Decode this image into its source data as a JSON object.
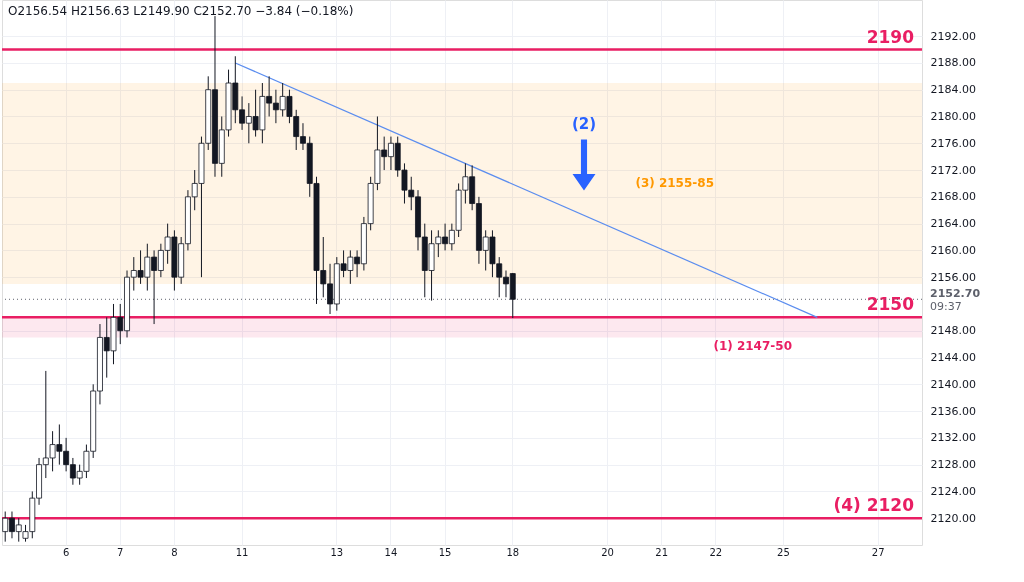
{
  "chart_data": {
    "type": "candlestick",
    "categories": [
      null,
      null,
      null,
      null,
      null,
      null,
      null,
      null,
      null,
      "6",
      null,
      null,
      null,
      null,
      null,
      null,
      null,
      "7",
      null,
      null,
      null,
      null,
      null,
      null,
      null,
      "8",
      null,
      null,
      null,
      null,
      null,
      null,
      null,
      null,
      null,
      "11",
      null,
      null,
      null,
      null,
      null,
      null,
      null,
      null,
      null,
      null,
      null,
      null,
      null,
      "13",
      null,
      null,
      null,
      null,
      null,
      null,
      null,
      "14",
      null,
      null,
      null,
      null,
      null,
      null,
      null,
      "15",
      null,
      null,
      null,
      null,
      null,
      null,
      null,
      null,
      null,
      "18",
      null,
      null,
      null,
      null,
      null,
      null,
      null,
      null,
      null,
      null,
      null,
      null,
      null,
      "20",
      null,
      null,
      null,
      null,
      null,
      null,
      null,
      "21",
      null,
      null,
      null,
      null,
      null,
      null,
      null,
      "22",
      null,
      null,
      null,
      null,
      null,
      null,
      null,
      null,
      null,
      "25",
      null,
      null,
      null,
      null,
      null,
      null,
      null,
      null,
      null,
      null,
      null,
      null,
      null,
      "27",
      null,
      null,
      null,
      null,
      null,
      null
    ],
    "series": [
      {
        "color": "#131722",
        "ohlc": [
          [
            2118,
            2121,
            2116.5,
            2120
          ],
          [
            2120,
            2121,
            2117,
            2118
          ],
          [
            2118,
            2120,
            2116.5,
            2119
          ],
          [
            2117,
            2119,
            2116.5,
            2118
          ],
          [
            2118,
            2124,
            2117,
            2123
          ],
          [
            2123,
            2129,
            2122,
            2128
          ],
          [
            2128,
            2142,
            2126,
            2129
          ],
          [
            2129,
            2133,
            2127,
            2131
          ],
          [
            2131,
            2134,
            2128,
            2130
          ],
          [
            2130,
            2132,
            2127,
            2128
          ],
          [
            2128,
            2129,
            2125,
            2126
          ],
          [
            2126,
            2128,
            2125,
            2127
          ],
          [
            2127,
            2131,
            2126,
            2130
          ],
          [
            2130,
            2140,
            2129,
            2139
          ],
          [
            2139,
            2149,
            2137,
            2147
          ],
          [
            2147,
            2150,
            2141,
            2145
          ],
          [
            2145,
            2152,
            2143,
            2150
          ],
          [
            2150,
            2152,
            2146,
            2148
          ],
          [
            2148,
            2157,
            2147,
            2156
          ],
          [
            2156,
            2159,
            2154,
            2157
          ],
          [
            2157,
            2160,
            2155,
            2156
          ],
          [
            2156,
            2161,
            2154,
            2159
          ],
          [
            2159,
            2160,
            2149,
            2157
          ],
          [
            2157,
            2161,
            2156,
            2160
          ],
          [
            2160,
            2164,
            2158,
            2162
          ],
          [
            2162,
            2163,
            2154,
            2156
          ],
          [
            2156,
            2162,
            2155,
            2161
          ],
          [
            2161,
            2169,
            2160,
            2168
          ],
          [
            2168,
            2172,
            2166,
            2170
          ],
          [
            2170,
            2177,
            2156,
            2176
          ],
          [
            2176,
            2186,
            2175,
            2184
          ],
          [
            2184,
            2195,
            2171,
            2173
          ],
          [
            2173,
            2180,
            2171,
            2178
          ],
          [
            2178,
            2187,
            2177,
            2185
          ],
          [
            2185,
            2189,
            2179,
            2181
          ],
          [
            2181,
            2183,
            2178,
            2179
          ],
          [
            2179,
            2182,
            2176,
            2180
          ],
          [
            2180,
            2184,
            2177,
            2178
          ],
          [
            2178,
            2185,
            2176,
            2183
          ],
          [
            2183,
            2186,
            2180,
            2182
          ],
          [
            2182,
            2184,
            2179,
            2181
          ],
          [
            2181,
            2185,
            2180,
            2183
          ],
          [
            2183,
            2184,
            2179,
            2180
          ],
          [
            2180,
            2181,
            2175,
            2177
          ],
          [
            2177,
            2179,
            2175,
            2176
          ],
          [
            2176,
            2177,
            2168,
            2170
          ],
          [
            2170,
            2171,
            2152,
            2157
          ],
          [
            2157,
            2162,
            2153,
            2155
          ],
          [
            2155,
            2158,
            2150.5,
            2152
          ],
          [
            2152,
            2159,
            2151,
            2158
          ],
          [
            2158,
            2160,
            2156,
            2157
          ],
          [
            2157,
            2160,
            2155,
            2159
          ],
          [
            2159,
            2160,
            2156,
            2158
          ],
          [
            2158,
            2165,
            2157,
            2164
          ],
          [
            2164,
            2171,
            2163,
            2170
          ],
          [
            2170,
            2180,
            2169,
            2175
          ],
          [
            2175,
            2177,
            2172,
            2174
          ],
          [
            2174,
            2177,
            2172,
            2176
          ],
          [
            2176,
            2177,
            2171,
            2172
          ],
          [
            2172,
            2173,
            2167,
            2169
          ],
          [
            2169,
            2171,
            2166,
            2168
          ],
          [
            2168,
            2169,
            2160,
            2162
          ],
          [
            2162,
            2164,
            2153,
            2157
          ],
          [
            2157,
            2163,
            2152.5,
            2161
          ],
          [
            2161,
            2163,
            2159,
            2162
          ],
          [
            2162,
            2164,
            2160,
            2161
          ],
          [
            2161,
            2164,
            2160,
            2163
          ],
          [
            2163,
            2170,
            2162,
            2169
          ],
          [
            2169,
            2173,
            2167,
            2171
          ],
          [
            2171,
            2172.7,
            2166,
            2167
          ],
          [
            2167,
            2168,
            2158,
            2160
          ],
          [
            2160,
            2163,
            2157,
            2162
          ],
          [
            2162,
            2163,
            2156,
            2158
          ],
          [
            2158,
            2159,
            2153,
            2156
          ],
          [
            2156,
            2157,
            2153,
            2155
          ],
          [
            2156.54,
            2156.63,
            2149.9,
            2152.7
          ],
          null,
          null,
          null,
          null,
          null,
          null,
          null,
          null,
          null,
          null,
          null,
          null,
          null,
          null,
          null,
          null,
          null,
          null,
          null,
          null,
          null,
          null,
          null,
          null,
          null,
          null,
          null,
          null,
          null,
          null,
          null,
          null,
          null,
          null,
          null,
          null,
          null,
          null,
          null,
          null,
          null,
          null,
          null,
          null,
          null,
          null,
          null,
          null,
          null,
          null,
          null,
          null,
          null,
          null,
          null,
          null,
          null,
          null,
          null,
          null
        ]
      },
      {
        "type": "line",
        "color": "#5b8def",
        "values": [
          null,
          null,
          null,
          null,
          null,
          null,
          null,
          null,
          null,
          null,
          null,
          null,
          null,
          null,
          null,
          null,
          null,
          null,
          null,
          null,
          null,
          null,
          null,
          null,
          null,
          null,
          null,
          null,
          null,
          null,
          null,
          null,
          null,
          null,
          2188,
          null,
          null,
          null,
          null,
          null,
          null,
          null,
          null,
          null,
          null,
          null,
          null,
          null,
          null,
          null,
          null,
          null,
          null,
          null,
          null,
          null,
          null,
          null,
          null,
          null,
          null,
          null,
          null,
          null,
          null,
          null,
          null,
          null,
          null,
          null,
          null,
          null,
          null,
          null,
          null,
          null,
          null,
          null,
          null,
          null,
          null,
          null,
          null,
          null,
          null,
          null,
          null,
          null,
          null,
          null,
          null,
          null,
          null,
          null,
          null,
          null,
          null,
          null,
          null,
          null,
          null,
          null,
          null,
          null,
          null,
          null,
          null,
          null,
          null,
          null,
          null,
          null,
          null,
          null,
          null,
          null,
          null,
          null,
          null,
          null,
          2150,
          null,
          null,
          null,
          null,
          null,
          null,
          null,
          null,
          null,
          null,
          null,
          null,
          null,
          null,
          null
        ]
      }
    ],
    "ylim": [
      2116,
      2197.4
    ],
    "yticks": [
      {
        "value": 2120,
        "label": "2120.00"
      },
      {
        "value": 2124,
        "label": "2124.00"
      },
      {
        "value": 2128,
        "label": "2128.00"
      },
      {
        "value": 2132,
        "label": "2132.00"
      },
      {
        "value": 2136,
        "label": "2136.00"
      },
      {
        "value": 2140,
        "label": "2140.00"
      },
      {
        "value": 2144,
        "label": "2144.00"
      },
      {
        "value": 2148,
        "label": "2148.00"
      },
      {
        "value": 2156,
        "label": "2156.00"
      },
      {
        "value": 2160,
        "label": "2160.00"
      },
      {
        "value": 2164,
        "label": "2164.00"
      },
      {
        "value": 2168,
        "label": "2168.00"
      },
      {
        "value": 2172,
        "label": "2172.00"
      },
      {
        "value": 2176,
        "label": "2176.00"
      },
      {
        "value": 2180,
        "label": "2180.00"
      },
      {
        "value": 2184,
        "label": "2184.00"
      },
      {
        "value": 2188,
        "label": "2188.00"
      },
      {
        "value": 2192,
        "label": "2192.00"
      }
    ],
    "ref_lines": [
      {
        "axis": "y",
        "value": 2190,
        "label": "2190",
        "color": "#e91e63"
      },
      {
        "axis": "y",
        "value": 2150,
        "label": "2150",
        "color": "#e91e63"
      },
      {
        "axis": "y",
        "value": 2120,
        "label": "(4) 2120",
        "color": "#e91e63"
      },
      {
        "axis": "y",
        "value": 2152.7,
        "label": "2152.70",
        "color": "#5d606b",
        "line_style": "dotted"
      }
    ],
    "bands": [
      {
        "axis": "y",
        "from": 2147,
        "to": 2150,
        "label": "(1) 2147-50",
        "color": "#e91e63"
      },
      {
        "axis": "y",
        "from": 2155,
        "to": 2185,
        "label": "(3) 2155-85",
        "color": "#ff9800"
      }
    ],
    "annotations": [
      "O2156.54 H2156.63 L2149.90 C2152.70 −3.84 (−0.18%)",
      "09:37",
      "(2)"
    ],
    "grid": true
  }
}
